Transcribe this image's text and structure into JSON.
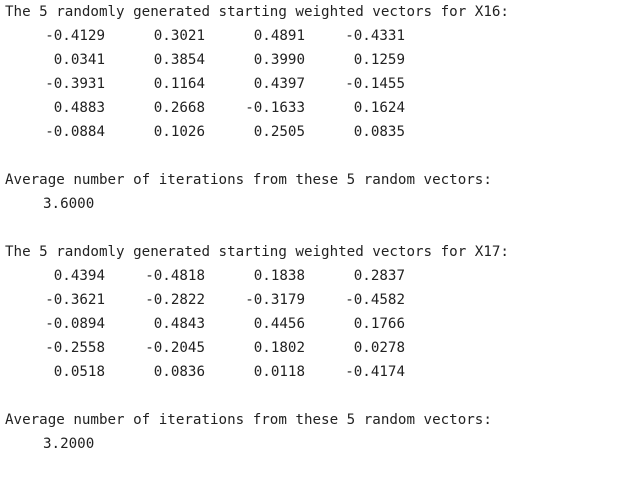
{
  "blocks": [
    {
      "header": "The 5 randomly generated starting weighted vectors for X16:",
      "rows": [
        [
          "-0.4129",
          "0.3021",
          "0.4891",
          "-0.4331"
        ],
        [
          "0.0341",
          "0.3854",
          "0.3990",
          "0.1259"
        ],
        [
          "-0.3931",
          "0.1164",
          "0.4397",
          "-0.1455"
        ],
        [
          "0.4883",
          "0.2668",
          "-0.1633",
          "0.1624"
        ],
        [
          "-0.0884",
          "0.1026",
          "0.2505",
          "0.0835"
        ]
      ],
      "avg_label": "Average number of iterations from these 5 random vectors:",
      "avg_value": "3.6000"
    },
    {
      "header": "The 5 randomly generated starting weighted vectors for X17:",
      "rows": [
        [
          "0.4394",
          "-0.4818",
          "0.1838",
          "0.2837"
        ],
        [
          "-0.3621",
          "-0.2822",
          "-0.3179",
          "-0.4582"
        ],
        [
          "-0.0894",
          "0.4843",
          "0.4456",
          "0.1766"
        ],
        [
          "-0.2558",
          "-0.2045",
          "0.1802",
          "0.0278"
        ],
        [
          "0.0518",
          "0.0836",
          "0.0118",
          "-0.4174"
        ]
      ],
      "avg_label": "Average number of iterations from these 5 random vectors:",
      "avg_value": "3.2000"
    }
  ]
}
